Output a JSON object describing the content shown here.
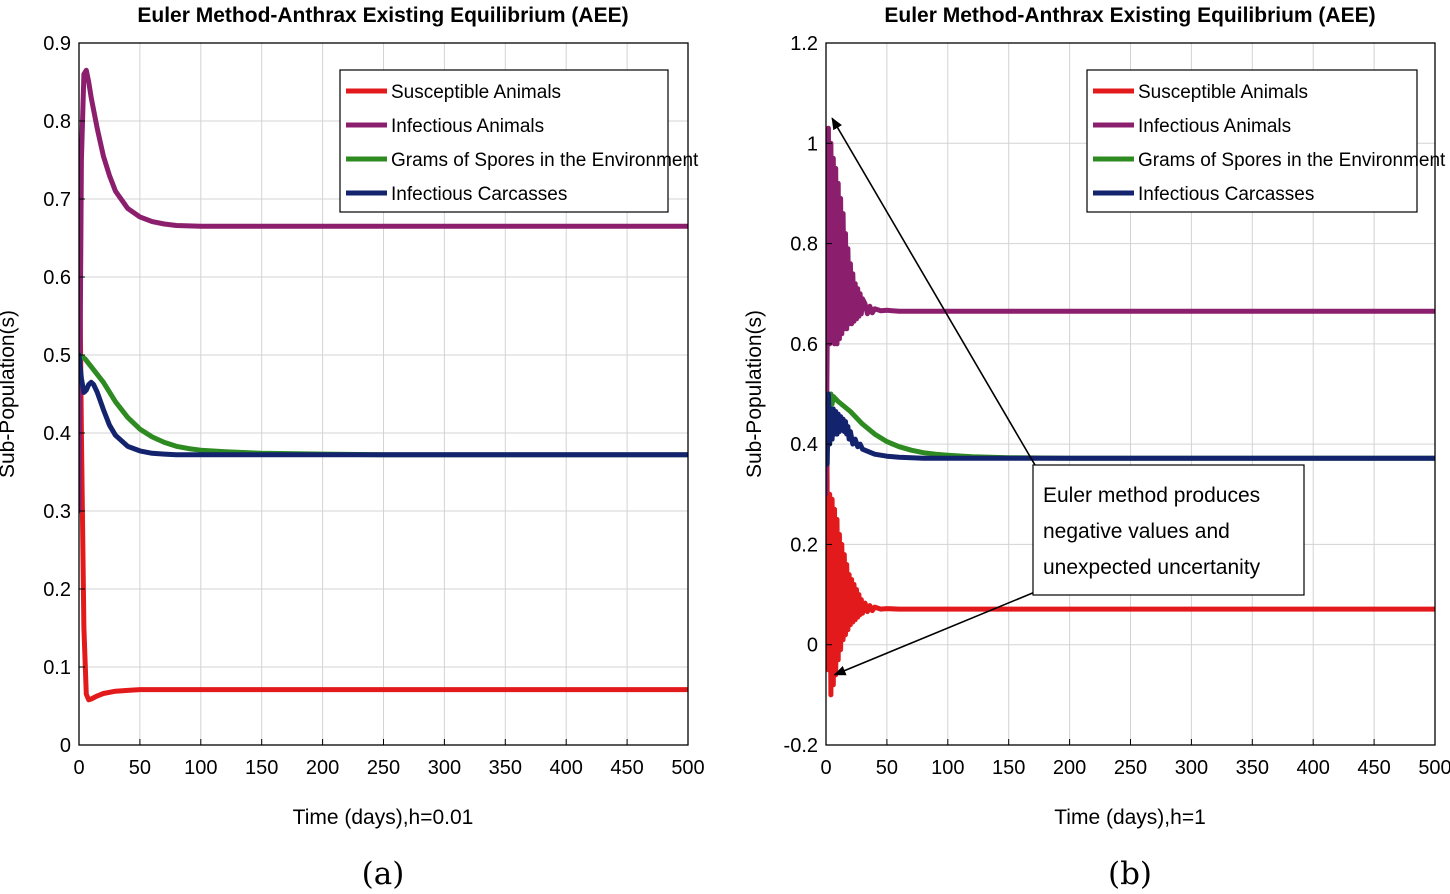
{
  "chart_data": [
    {
      "type": "line",
      "title": "Euler Method-Anthrax Existing Equilibrium (AEE)",
      "xlabel": "Time (days),h=0.01",
      "ylabel": "Sub-Population(s)",
      "panel_label": "(a)",
      "xlim": [
        0,
        500
      ],
      "ylim": [
        0,
        0.9
      ],
      "xticks": [
        0,
        50,
        100,
        150,
        200,
        250,
        300,
        350,
        400,
        450,
        500
      ],
      "yticks": [
        0,
        0.1,
        0.2,
        0.3,
        0.4,
        0.5,
        0.6,
        0.7,
        0.8,
        0.9
      ],
      "grid": true,
      "legend_position": "top-right",
      "series": [
        {
          "name": "Susceptible Animals",
          "color": "#e31a1c",
          "x": [
            0,
            2,
            4,
            6,
            8,
            10,
            15,
            20,
            30,
            40,
            50,
            70,
            100,
            150,
            500
          ],
          "y": [
            0.7,
            0.4,
            0.15,
            0.065,
            0.058,
            0.059,
            0.063,
            0.066,
            0.069,
            0.07,
            0.071,
            0.071,
            0.071,
            0.071,
            0.071
          ]
        },
        {
          "name": "Infectious Animals",
          "color": "#8b1f6e",
          "x": [
            0,
            2,
            4,
            6,
            8,
            10,
            15,
            20,
            25,
            30,
            40,
            50,
            60,
            70,
            80,
            100,
            150,
            500
          ],
          "y": [
            0.3,
            0.75,
            0.86,
            0.865,
            0.85,
            0.83,
            0.79,
            0.755,
            0.73,
            0.71,
            0.688,
            0.677,
            0.671,
            0.668,
            0.666,
            0.665,
            0.665,
            0.665
          ]
        },
        {
          "name": "Grams of Spores in the Environment",
          "color": "#2e8b22",
          "x": [
            0,
            5,
            10,
            20,
            30,
            40,
            50,
            60,
            70,
            80,
            90,
            100,
            120,
            150,
            200,
            250,
            500
          ],
          "y": [
            0.5,
            0.495,
            0.485,
            0.465,
            0.44,
            0.42,
            0.405,
            0.395,
            0.388,
            0.383,
            0.38,
            0.378,
            0.376,
            0.374,
            0.373,
            0.372,
            0.372
          ]
        },
        {
          "name": "Infectious Carcasses",
          "color": "#14236e",
          "x": [
            0,
            2,
            4,
            6,
            8,
            10,
            12,
            15,
            20,
            25,
            30,
            40,
            50,
            60,
            70,
            80,
            100,
            150,
            500
          ],
          "y": [
            0.5,
            0.47,
            0.452,
            0.455,
            0.462,
            0.465,
            0.462,
            0.452,
            0.43,
            0.41,
            0.397,
            0.383,
            0.377,
            0.374,
            0.373,
            0.372,
            0.372,
            0.372,
            0.372
          ]
        }
      ]
    },
    {
      "type": "line",
      "title": "Euler Method-Anthrax Existing Equilibrium (AEE)",
      "xlabel": "Time (days),h=1",
      "ylabel": "Sub-Population(s)",
      "panel_label": "(b)",
      "xlim": [
        0,
        500
      ],
      "ylim": [
        -0.2,
        1.2
      ],
      "xticks": [
        0,
        50,
        100,
        150,
        200,
        250,
        300,
        350,
        400,
        450,
        500
      ],
      "yticks": [
        -0.2,
        0,
        0.2,
        0.4,
        0.6,
        0.8,
        1,
        1.2
      ],
      "grid": true,
      "legend_position": "top-right",
      "series": [
        {
          "name": "Susceptible Animals",
          "color": "#e31a1c",
          "x": [
            0,
            1,
            2,
            3,
            4,
            5,
            6,
            7,
            8,
            9,
            10,
            11,
            12,
            13,
            14,
            15,
            16,
            17,
            18,
            19,
            20,
            21,
            22,
            23,
            24,
            25,
            26,
            27,
            28,
            29,
            30,
            32,
            34,
            36,
            38,
            40,
            45,
            50,
            60,
            80,
            100,
            500
          ],
          "y": [
            0.7,
            0.3,
            -0.05,
            0.3,
            -0.1,
            0.29,
            -0.08,
            0.27,
            -0.06,
            0.25,
            -0.03,
            0.22,
            -0.01,
            0.2,
            0.01,
            0.18,
            0.02,
            0.16,
            0.03,
            0.14,
            0.04,
            0.13,
            0.045,
            0.12,
            0.05,
            0.11,
            0.055,
            0.1,
            0.06,
            0.09,
            0.063,
            0.083,
            0.066,
            0.078,
            0.068,
            0.075,
            0.071,
            0.072,
            0.071,
            0.071,
            0.071,
            0.071
          ]
        },
        {
          "name": "Infectious Animals",
          "color": "#8b1f6e",
          "x": [
            0,
            1,
            2,
            3,
            4,
            5,
            6,
            7,
            8,
            9,
            10,
            11,
            12,
            13,
            14,
            15,
            16,
            17,
            18,
            19,
            20,
            21,
            22,
            23,
            24,
            25,
            26,
            27,
            28,
            29,
            30,
            32,
            34,
            36,
            38,
            40,
            45,
            50,
            60,
            80,
            100,
            500
          ],
          "y": [
            0.3,
            0.6,
            1.03,
            0.6,
            1.0,
            0.62,
            0.97,
            0.6,
            0.95,
            0.6,
            0.92,
            0.61,
            0.89,
            0.62,
            0.86,
            0.63,
            0.82,
            0.63,
            0.79,
            0.64,
            0.76,
            0.64,
            0.74,
            0.645,
            0.72,
            0.65,
            0.71,
            0.655,
            0.7,
            0.66,
            0.69,
            0.68,
            0.66,
            0.675,
            0.662,
            0.67,
            0.666,
            0.667,
            0.665,
            0.665,
            0.665,
            0.665
          ]
        },
        {
          "name": "Grams of Spores in the Environment",
          "color": "#2e8b22",
          "x": [
            0,
            1,
            2,
            3,
            4,
            5,
            6,
            8,
            10,
            15,
            20,
            30,
            40,
            50,
            60,
            70,
            80,
            90,
            100,
            120,
            150,
            200,
            500
          ],
          "y": [
            0.5,
            0.42,
            0.5,
            0.47,
            0.5,
            0.48,
            0.495,
            0.49,
            0.485,
            0.475,
            0.465,
            0.44,
            0.42,
            0.405,
            0.395,
            0.388,
            0.383,
            0.38,
            0.378,
            0.375,
            0.373,
            0.372,
            0.372
          ]
        },
        {
          "name": "Infectious Carcasses",
          "color": "#14236e",
          "x": [
            0,
            1,
            2,
            3,
            4,
            5,
            6,
            7,
            8,
            9,
            10,
            11,
            12,
            13,
            14,
            15,
            16,
            17,
            18,
            19,
            20,
            22,
            24,
            26,
            28,
            30,
            35,
            40,
            50,
            60,
            80,
            100,
            500
          ],
          "y": [
            0.5,
            0.36,
            0.5,
            0.4,
            0.47,
            0.41,
            0.47,
            0.42,
            0.465,
            0.42,
            0.46,
            0.425,
            0.455,
            0.43,
            0.45,
            0.425,
            0.445,
            0.42,
            0.435,
            0.41,
            0.425,
            0.4,
            0.41,
            0.395,
            0.4,
            0.39,
            0.385,
            0.38,
            0.376,
            0.374,
            0.372,
            0.372,
            0.372
          ]
        }
      ],
      "annotation": {
        "lines": [
          "Euler method produces",
          "negative values and",
          "unexpected uncertanity"
        ],
        "arrows_to": [
          {
            "x": 5,
            "y": 1.05
          },
          {
            "x": 7,
            "y": -0.06
          }
        ]
      }
    }
  ]
}
